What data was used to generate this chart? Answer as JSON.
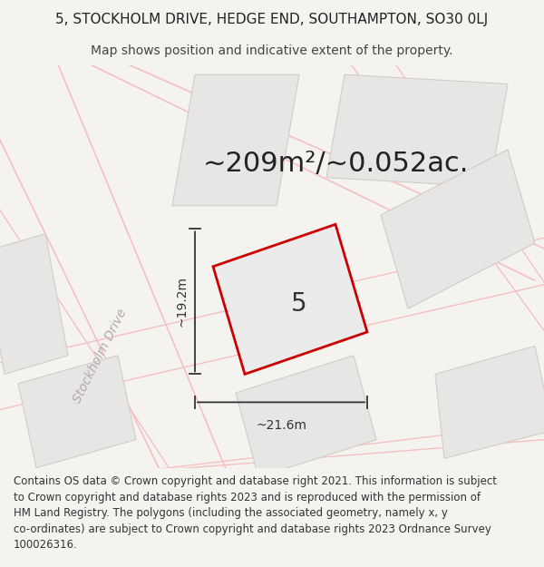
{
  "title_line1": "5, STOCKHOLM DRIVE, HEDGE END, SOUTHAMPTON, SO30 0LJ",
  "title_line2": "Map shows position and indicative extent of the property.",
  "area_text": "~209m²/~0.052ac.",
  "property_number": "5",
  "dim_width": "~21.6m",
  "dim_height": "~19.2m",
  "road_label": "Stockholm Drive",
  "map_bg": "#ffffff",
  "fig_bg": "#f5f3f0",
  "road_line_color": "#f5c0c0",
  "block_fill": "#e8e6e4",
  "block_edge": "#d0ccc8",
  "main_plot_edge": "#cc0000",
  "main_plot_fill": "#ebebeb",
  "dim_color": "#333333",
  "road_label_color": "#b0aaaa",
  "title_fontsize": 11,
  "subtitle_fontsize": 10,
  "area_fontsize": 22,
  "number_fontsize": 20,
  "dim_fontsize": 10,
  "road_label_fontsize": 10,
  "footer_fontsize": 8.5,
  "footer_lines": [
    "Contains OS data © Crown copyright and database right 2021. This information is subject",
    "to Crown copyright and database rights 2023 and is reproduced with the permission of",
    "HM Land Registry. The polygons (including the associated geometry, namely x, y",
    "co-ordinates) are subject to Crown copyright and database rights 2023 Ordnance Survey",
    "100026316."
  ]
}
